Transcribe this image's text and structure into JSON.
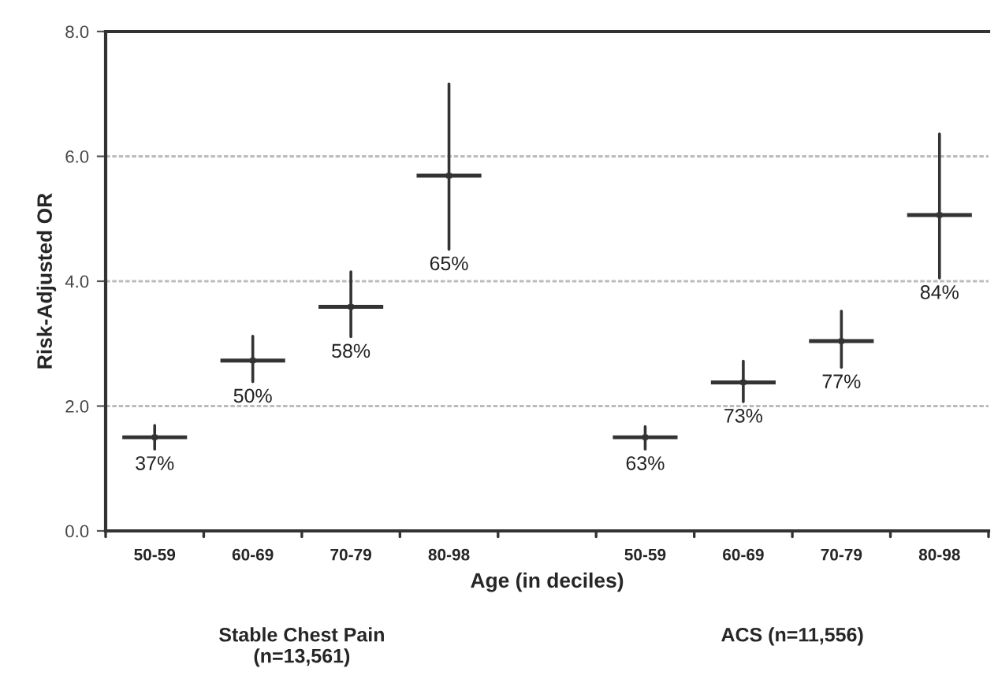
{
  "chart_data": {
    "type": "scatter",
    "xlabel": "Age (in deciles)",
    "ylabel": "Risk-Adjusted OR",
    "categories": [
      "50-59",
      "60-69",
      "70-79",
      "80-98",
      null,
      "50-59",
      "60-69",
      "70-79",
      "80-98"
    ],
    "values": [
      1.5,
      2.73,
      3.59,
      5.69,
      null,
      1.5,
      2.38,
      3.04,
      5.06
    ],
    "errors": [
      [
        1.31,
        1.69
      ],
      [
        2.39,
        3.12
      ],
      [
        3.11,
        4.15
      ],
      [
        4.51,
        7.16
      ],
      null,
      [
        1.31,
        1.67
      ],
      [
        2.07,
        2.72
      ],
      [
        2.62,
        3.52
      ],
      [
        4.05,
        6.36
      ]
    ],
    "color": "#333333",
    "ylim": [
      0,
      8
    ],
    "yticks": [
      {
        "value": 0,
        "label": "0.0"
      },
      {
        "value": 2,
        "label": "2.0"
      },
      {
        "value": 4,
        "label": "4.0"
      },
      {
        "value": 6,
        "label": "6.0"
      },
      {
        "value": 8,
        "label": "8.0"
      }
    ],
    "grid": "y",
    "annotations": [
      "Stable Chest Pain\n(n=13,561)",
      "ACS (n=11,556)",
      "37%",
      "50%",
      "58%",
      "65%",
      "63%",
      "73%",
      "77%",
      "84%"
    ]
  }
}
